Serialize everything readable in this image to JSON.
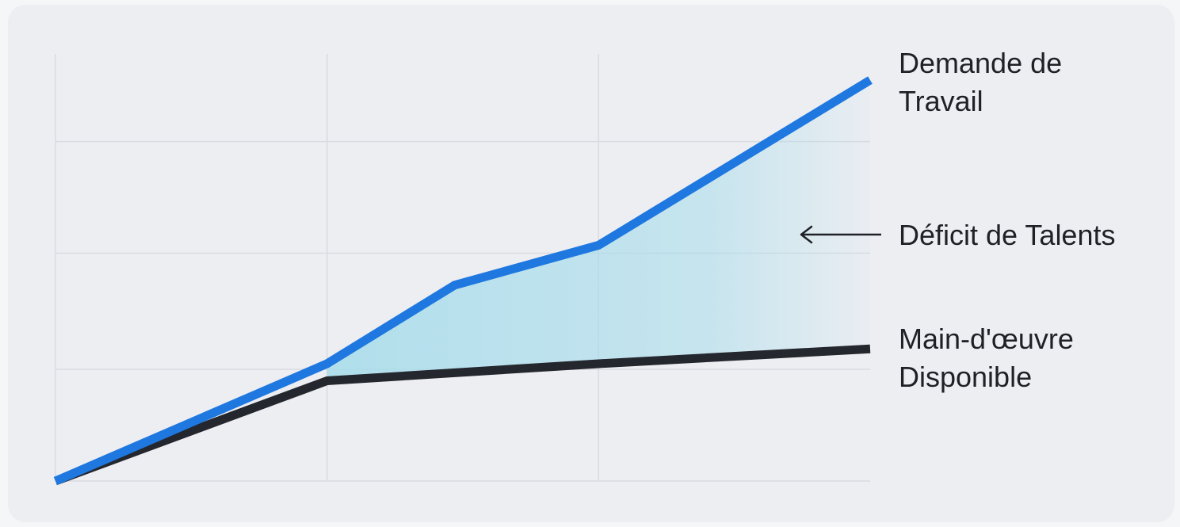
{
  "chart_data": {
    "type": "line",
    "title": "",
    "xlabel": "",
    "ylabel": "",
    "x": [
      0,
      1,
      2,
      3
    ],
    "xlim": [
      0,
      3
    ],
    "ylim": [
      0,
      3.75
    ],
    "grid": true,
    "series": [
      {
        "name": "Demande de Travail",
        "label_lines": [
          "Demande de",
          "Travail"
        ],
        "color": "#1e78e0",
        "points": [
          [
            0,
            0
          ],
          [
            1,
            1.03
          ],
          [
            1.47,
            1.72
          ],
          [
            2,
            2.07
          ],
          [
            3,
            3.52
          ]
        ]
      },
      {
        "name": "Main-d'œuvre Disponible",
        "label_lines": [
          "Main-d'œuvre",
          "Disponible"
        ],
        "color": "#24272e",
        "points": [
          [
            0,
            0
          ],
          [
            1,
            0.88
          ],
          [
            2,
            1.03
          ],
          [
            3,
            1.16
          ]
        ]
      }
    ],
    "annotation": {
      "text": "Déficit de Talents",
      "fill_color": "#a6dceb"
    }
  }
}
